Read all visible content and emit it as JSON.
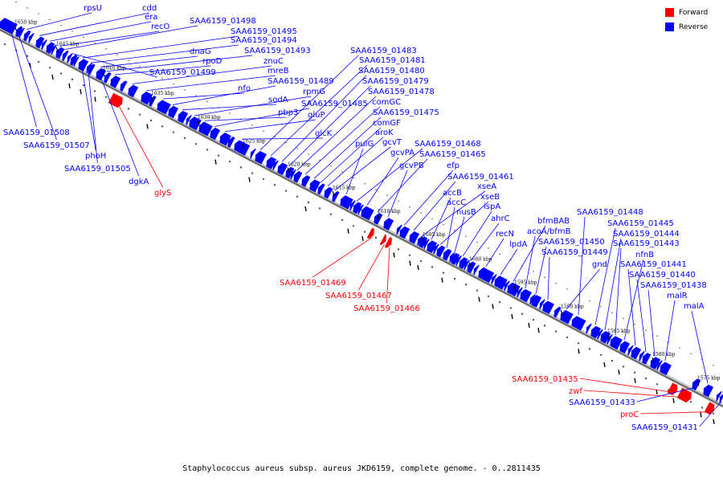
{
  "footer": "Staphylococcus aureus subsp. aureus JKD6159, complete genome. - 0..2811435",
  "legend": [
    {
      "label": "Forward",
      "color": "#ff0000"
    },
    {
      "label": "Reverse",
      "color": "#0000ff"
    }
  ],
  "colors": {
    "forward": "#ff0000",
    "reverse": "#0000ff",
    "backbone": "#666666"
  },
  "ticks": [
    "1650 kbp",
    "1645 kbp",
    "1640 kbp",
    "1635 kbp",
    "1630 kbp",
    "1625 kbp",
    "1620 kbp",
    "1615 kbp",
    "1610 kbp",
    "1605 kbp",
    "1600 kbp",
    "1595 kbp",
    "1590 kbp",
    "1585 kbp",
    "1580 kbp",
    "1575 kbp"
  ],
  "genes": [
    {
      "name": "rpsU",
      "strand": "reverse"
    },
    {
      "name": "cdd",
      "strand": "reverse"
    },
    {
      "name": "era",
      "strand": "reverse"
    },
    {
      "name": "recO",
      "strand": "reverse"
    },
    {
      "name": "SAA6159_01498",
      "strand": "reverse"
    },
    {
      "name": "SAA6159_01495",
      "strand": "reverse"
    },
    {
      "name": "SAA6159_01494",
      "strand": "reverse"
    },
    {
      "name": "dnaG",
      "strand": "reverse"
    },
    {
      "name": "SAA6159_01493",
      "strand": "reverse"
    },
    {
      "name": "rpoD",
      "strand": "reverse"
    },
    {
      "name": "SAA6159_01499",
      "strand": "reverse"
    },
    {
      "name": "znuC",
      "strand": "reverse"
    },
    {
      "name": "mreB",
      "strand": "reverse"
    },
    {
      "name": "nfo",
      "strand": "reverse"
    },
    {
      "name": "SAA6159_01489",
      "strand": "reverse"
    },
    {
      "name": "sodA",
      "strand": "reverse"
    },
    {
      "name": "rpmG",
      "strand": "reverse"
    },
    {
      "name": "pbp3",
      "strand": "reverse"
    },
    {
      "name": "SAA6159_01485",
      "strand": "reverse"
    },
    {
      "name": "gluP",
      "strand": "reverse"
    },
    {
      "name": "glcK",
      "strand": "reverse"
    },
    {
      "name": "SAA6159_01483",
      "strand": "reverse"
    },
    {
      "name": "SAA6159_01481",
      "strand": "reverse"
    },
    {
      "name": "SAA6159_01480",
      "strand": "reverse"
    },
    {
      "name": "SAA6159_01479",
      "strand": "reverse"
    },
    {
      "name": "SAA6159_01478",
      "strand": "reverse"
    },
    {
      "name": "comGC",
      "strand": "reverse"
    },
    {
      "name": "SAA6159_01475",
      "strand": "reverse"
    },
    {
      "name": "comGF",
      "strand": "reverse"
    },
    {
      "name": "aroK",
      "strand": "reverse"
    },
    {
      "name": "gcvT",
      "strand": "reverse"
    },
    {
      "name": "pulG",
      "strand": "reverse"
    },
    {
      "name": "SAA6159_01468",
      "strand": "reverse"
    },
    {
      "name": "gcvPA",
      "strand": "reverse"
    },
    {
      "name": "SAA6159_01465",
      "strand": "reverse"
    },
    {
      "name": "gcvPB",
      "strand": "reverse"
    },
    {
      "name": "efp",
      "strand": "reverse"
    },
    {
      "name": "SAA6159_01461",
      "strand": "reverse"
    },
    {
      "name": "xseA",
      "strand": "reverse"
    },
    {
      "name": "accB",
      "strand": "reverse"
    },
    {
      "name": "xseB",
      "strand": "reverse"
    },
    {
      "name": "accC",
      "strand": "reverse"
    },
    {
      "name": "nusB",
      "strand": "reverse"
    },
    {
      "name": "ispA",
      "strand": "reverse"
    },
    {
      "name": "ahrC",
      "strand": "reverse"
    },
    {
      "name": "recN",
      "strand": "reverse"
    },
    {
      "name": "lpdA",
      "strand": "reverse"
    },
    {
      "name": "bfmBAB",
      "strand": "reverse"
    },
    {
      "name": "acoA/bfmB",
      "strand": "reverse"
    },
    {
      "name": "SAA6159_01450",
      "strand": "reverse"
    },
    {
      "name": "SAA6159_01449",
      "strand": "reverse"
    },
    {
      "name": "gnd",
      "strand": "reverse"
    },
    {
      "name": "SAA6159_01448",
      "strand": "reverse"
    },
    {
      "name": "SAA6159_01445",
      "strand": "reverse"
    },
    {
      "name": "SAA6159_01444",
      "strand": "reverse"
    },
    {
      "name": "SAA6159_01443",
      "strand": "reverse"
    },
    {
      "name": "nfnB",
      "strand": "reverse"
    },
    {
      "name": "SAA6159_01441",
      "strand": "reverse"
    },
    {
      "name": "SAA6159_01440",
      "strand": "reverse"
    },
    {
      "name": "SAA6159_01438",
      "strand": "reverse"
    },
    {
      "name": "malR",
      "strand": "reverse"
    },
    {
      "name": "malA",
      "strand": "reverse"
    },
    {
      "name": "SAA6159_01508",
      "strand": "reverse"
    },
    {
      "name": "SAA6159_01507",
      "strand": "reverse"
    },
    {
      "name": "phoH",
      "strand": "reverse"
    },
    {
      "name": "SAA6159_01505",
      "strand": "reverse"
    },
    {
      "name": "dgkA",
      "strand": "reverse"
    },
    {
      "name": "glyS",
      "strand": "forward"
    },
    {
      "name": "SAA6159_01469",
      "strand": "forward"
    },
    {
      "name": "SAA6159_01467",
      "strand": "forward"
    },
    {
      "name": "SAA6159_01466",
      "strand": "forward"
    },
    {
      "name": "SAA6159_01435",
      "strand": "forward"
    },
    {
      "name": "zwf",
      "strand": "forward"
    },
    {
      "name": "SAA6159_01433",
      "strand": "reverse"
    },
    {
      "name": "proC",
      "strand": "forward"
    },
    {
      "name": "SAA6159_01431",
      "strand": "reverse"
    }
  ]
}
